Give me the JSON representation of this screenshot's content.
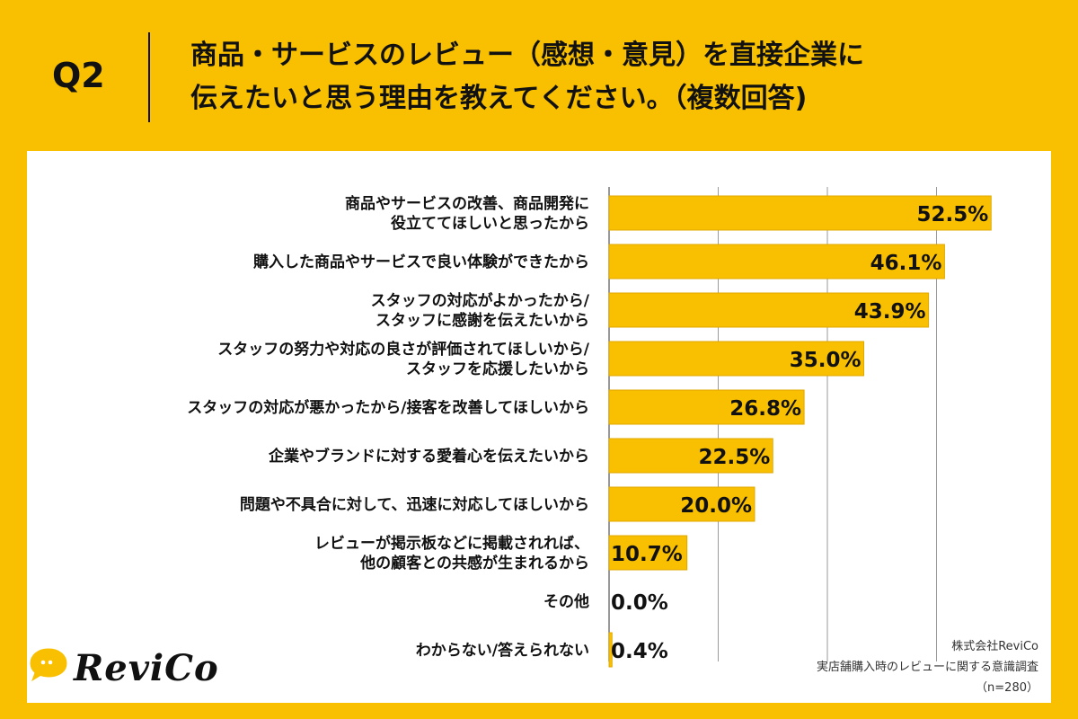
{
  "header": {
    "question_label": "Q2",
    "title_lines": [
      "商品・サービスのレビュー（感想・意見）を直接企業に",
      "伝えたいと思う理由を教えてください。（複数回答)"
    ]
  },
  "chart_data": {
    "type": "bar",
    "orientation": "horizontal",
    "categories": [
      [
        "商品やサービスの改善、商品開発に",
        "役立ててほしいと思ったから"
      ],
      [
        "購入した商品やサービスで良い体験ができたから"
      ],
      [
        "スタッフの対応がよかったから/",
        "スタッフに感謝を伝えたいから"
      ],
      [
        "スタッフの努力や対応の良さが評価されてほしいから/",
        "スタッフを応援したいから"
      ],
      [
        "スタッフの対応が悪かったから/接客を改善してほしいから"
      ],
      [
        "企業やブランドに対する愛着心を伝えたいから"
      ],
      [
        "問題や不具合に対して、迅速に対応してほしいから"
      ],
      [
        "レビューが掲示板などに掲載されれば、",
        "他の顧客との共感が生まれるから"
      ],
      [
        "その他"
      ],
      [
        "わからない/答えられない"
      ]
    ],
    "values": [
      52.5,
      46.1,
      43.9,
      35.0,
      26.8,
      22.5,
      20.0,
      10.7,
      0.0,
      0.4
    ],
    "value_labels": [
      "52.5%",
      "46.1%",
      "43.9%",
      "35.0%",
      "26.8%",
      "22.5%",
      "20.0%",
      "10.7%",
      "0.0%",
      "0.4%"
    ],
    "xlim": [
      0,
      60
    ],
    "grid": true,
    "bar_color": "#F8C000",
    "bar_border_color": "#E0A800"
  },
  "logo": {
    "text": "ReviCo",
    "bubble_color": "#F8C000"
  },
  "source": {
    "company": "株式会社ReviCo",
    "survey": "実店舗購入時のレビューに関する意識調査",
    "sample": "（n=280）"
  }
}
